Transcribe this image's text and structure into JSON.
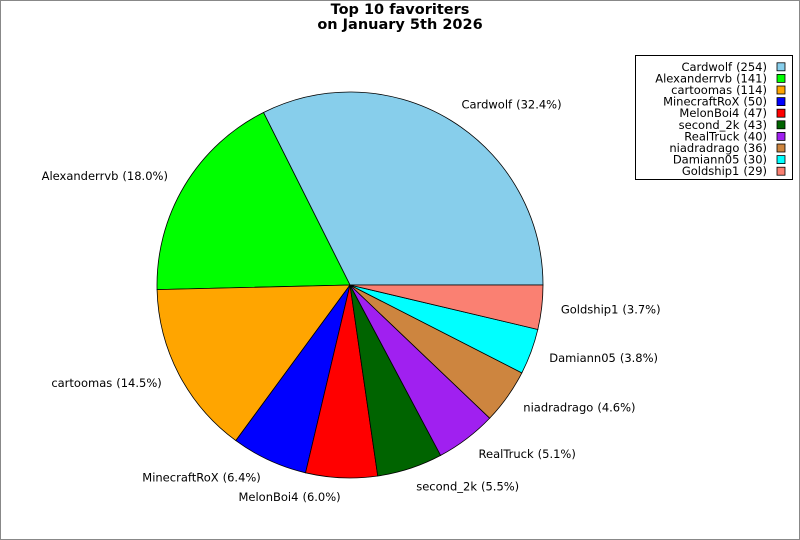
{
  "chart_data": {
    "type": "pie",
    "title_lines": [
      "Top 10 favoriters",
      "on January 5th 2026"
    ],
    "categories": [
      "Cardwolf",
      "Alexanderrvb",
      "cartoomas",
      "MinecraftRoX",
      "MelonBoi4",
      "second_2k",
      "RealTruck",
      "niadradrago",
      "Damiann05",
      "Goldship1"
    ],
    "values": [
      254,
      141,
      114,
      50,
      47,
      43,
      40,
      36,
      30,
      29
    ],
    "value_labels": [
      "(254)",
      "(141)",
      "(114)",
      "(50)",
      "(47)",
      "(43)",
      "(40)",
      "(36)",
      "(30)",
      "(29)"
    ],
    "percents": [
      32.4,
      18.0,
      14.5,
      6.4,
      6.0,
      5.5,
      5.1,
      4.6,
      3.8,
      3.7
    ],
    "percent_labels": [
      "(32.4%)",
      "(18.0%)",
      "(14.5%)",
      "(6.4%)",
      "(6.0%)",
      "(5.5%)",
      "(5.1%)",
      "(4.6%)",
      "(3.8%)",
      "(3.7%)"
    ],
    "colors": [
      "#87ceeb",
      "#00ff00",
      "#ffa500",
      "#0000ff",
      "#ff0000",
      "#006400",
      "#a020f0",
      "#cd853f",
      "#00ffff",
      "#fa8072"
    ],
    "legend": "upper right"
  }
}
